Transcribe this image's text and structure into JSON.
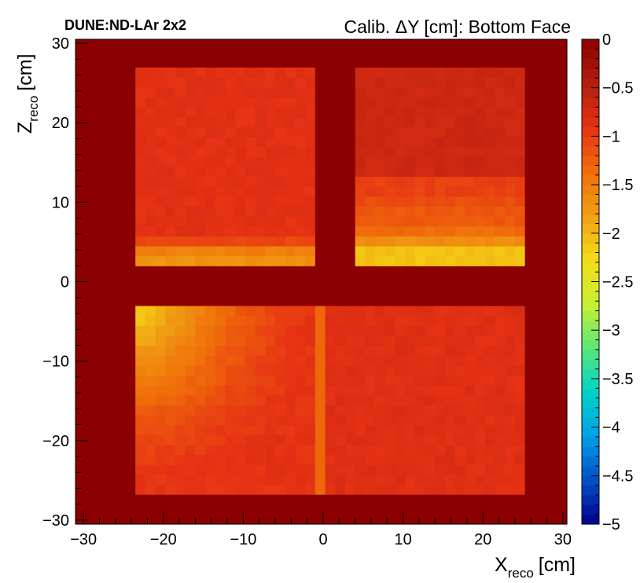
{
  "header": {
    "experiment": "DUNE:ND-LAr 2x2",
    "title": "Calib. ΔY [cm]: Bottom Face"
  },
  "axes": {
    "x_main": "X",
    "x_sub": "reco",
    "x_unit": "[cm]",
    "y_main": "Z",
    "y_sub": "reco",
    "y_unit": "[cm]"
  },
  "colors": {
    "empty_bin": "#8B0000",
    "frame": "#000000",
    "palette": [
      "#00008B",
      "#0050C8",
      "#00A0E6",
      "#00D2C8",
      "#5AE678",
      "#C8F032",
      "#F5DC14",
      "#F0A014",
      "#F06E0A",
      "#E63214",
      "#B41E0F",
      "#8B0000"
    ]
  },
  "chart_data": {
    "type": "heatmap",
    "title": "Calib. ΔY [cm]: Bottom Face",
    "xlabel": "X_reco [cm]",
    "ylabel": "Z_reco [cm]",
    "zlabel": "",
    "xlim": [
      -31,
      30.5
    ],
    "ylim": [
      -30.5,
      30.5
    ],
    "zlim": [
      -5,
      0
    ],
    "bin_size": 1.25,
    "x_ticks": [
      {
        "v": -30,
        "t": "−30"
      },
      {
        "v": -20,
        "t": "−20"
      },
      {
        "v": -10,
        "t": "−10"
      },
      {
        "v": 0,
        "t": "0"
      },
      {
        "v": 10,
        "t": "10"
      },
      {
        "v": 20,
        "t": "20"
      },
      {
        "v": 30,
        "t": "30"
      }
    ],
    "y_ticks": [
      {
        "v": -30,
        "t": "−30"
      },
      {
        "v": -20,
        "t": "−20"
      },
      {
        "v": -10,
        "t": "−10"
      },
      {
        "v": 0,
        "t": "0"
      },
      {
        "v": 10,
        "t": "10"
      },
      {
        "v": 20,
        "t": "20"
      },
      {
        "v": 30,
        "t": "30"
      }
    ],
    "z_ticks": [
      {
        "v": 0,
        "t": "0"
      },
      {
        "v": -0.5,
        "t": "−0.5"
      },
      {
        "v": -1,
        "t": "−1"
      },
      {
        "v": -1.5,
        "t": "−1.5"
      },
      {
        "v": -2,
        "t": "−2"
      },
      {
        "v": -2.5,
        "t": "−2.5"
      },
      {
        "v": -3,
        "t": "−3"
      },
      {
        "v": -3.5,
        "t": "−3.5"
      },
      {
        "v": -4,
        "t": "−4"
      },
      {
        "v": -4.5,
        "t": "−4.5"
      },
      {
        "v": -5,
        "t": "−5"
      }
    ],
    "background_value": 0,
    "regions": [
      {
        "name": "top-left",
        "x": [
          -24,
          -0.5
        ],
        "z": [
          2,
          27
        ],
        "base": -0.87,
        "rows": [
          {
            "z": [
              4.5,
              5.5
            ],
            "value": -1.07
          },
          {
            "z": [
              3.2,
              4.5
            ],
            "value": -1.52
          },
          {
            "z": [
              2.0,
              3.2
            ],
            "value": -1.7
          }
        ]
      },
      {
        "name": "top-right",
        "x": [
          3.5,
          25
        ],
        "z": [
          2,
          27
        ],
        "base": -0.68,
        "rows": [
          {
            "z": [
              10.5,
              13
            ],
            "value": -1.02
          },
          {
            "z": [
              9,
              10.5
            ],
            "value": -1.1
          },
          {
            "z": [
              7.3,
              9
            ],
            "value": -1.2
          },
          {
            "z": [
              5.5,
              7.3
            ],
            "value": -1.35
          },
          {
            "z": [
              4.3,
              5.5
            ],
            "value": -1.65
          },
          {
            "z": [
              2.0,
              4.3
            ],
            "value": -2.08
          }
        ]
      },
      {
        "name": "bottom-left",
        "x": [
          -24,
          -0.5
        ],
        "z": [
          -27,
          -3
        ],
        "base": -0.9,
        "corner": {
          "x": -24,
          "z": -3,
          "value": -2.3,
          "span": 26
        }
      },
      {
        "name": "bottom-right",
        "x": [
          0.5,
          25
        ],
        "z": [
          -27,
          -3
        ],
        "base": -0.85
      },
      {
        "name": "centre-column",
        "x": [
          -0.5,
          0.5
        ],
        "z": [
          -27,
          -3.5
        ],
        "value": -1.3
      }
    ]
  }
}
